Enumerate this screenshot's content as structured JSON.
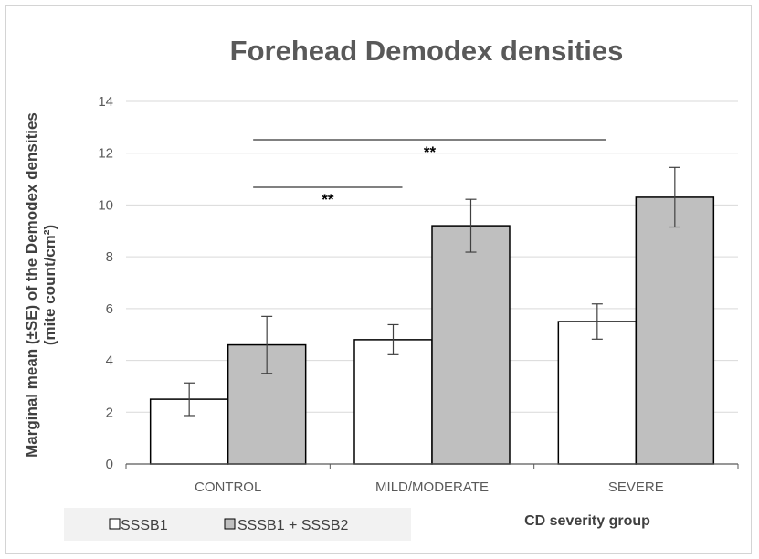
{
  "chart_data": {
    "type": "bar",
    "title": "Forehead Demodex densities",
    "ylabel_line1": "Marginal mean (±SE) of the Demodex densities",
    "ylabel_line2": "(mite count/cm²)",
    "xlabel": "CD severity group",
    "ylim": [
      0,
      14
    ],
    "yticks": [
      0,
      2,
      4,
      6,
      8,
      10,
      12,
      14
    ],
    "grid": true,
    "legend_position": "bottom-left",
    "categories": [
      "CONTROL",
      "MILD/MODERATE",
      "SEVERE"
    ],
    "series": [
      {
        "name": "SSSB1",
        "color": "#ffffff",
        "values": [
          2.5,
          4.8,
          5.5
        ],
        "se": [
          0.63,
          0.58,
          0.68
        ]
      },
      {
        "name": "SSSB1 + SSSB2",
        "color": "#bfbfbf",
        "values": [
          4.6,
          9.2,
          10.3
        ],
        "se": [
          1.1,
          1.02,
          1.15
        ]
      }
    ],
    "significance": [
      {
        "label": "**",
        "from_category": "CONTROL",
        "to_category": "MILD/MODERATE"
      },
      {
        "label": "**",
        "from_category": "CONTROL",
        "to_category": "SEVERE"
      }
    ]
  }
}
